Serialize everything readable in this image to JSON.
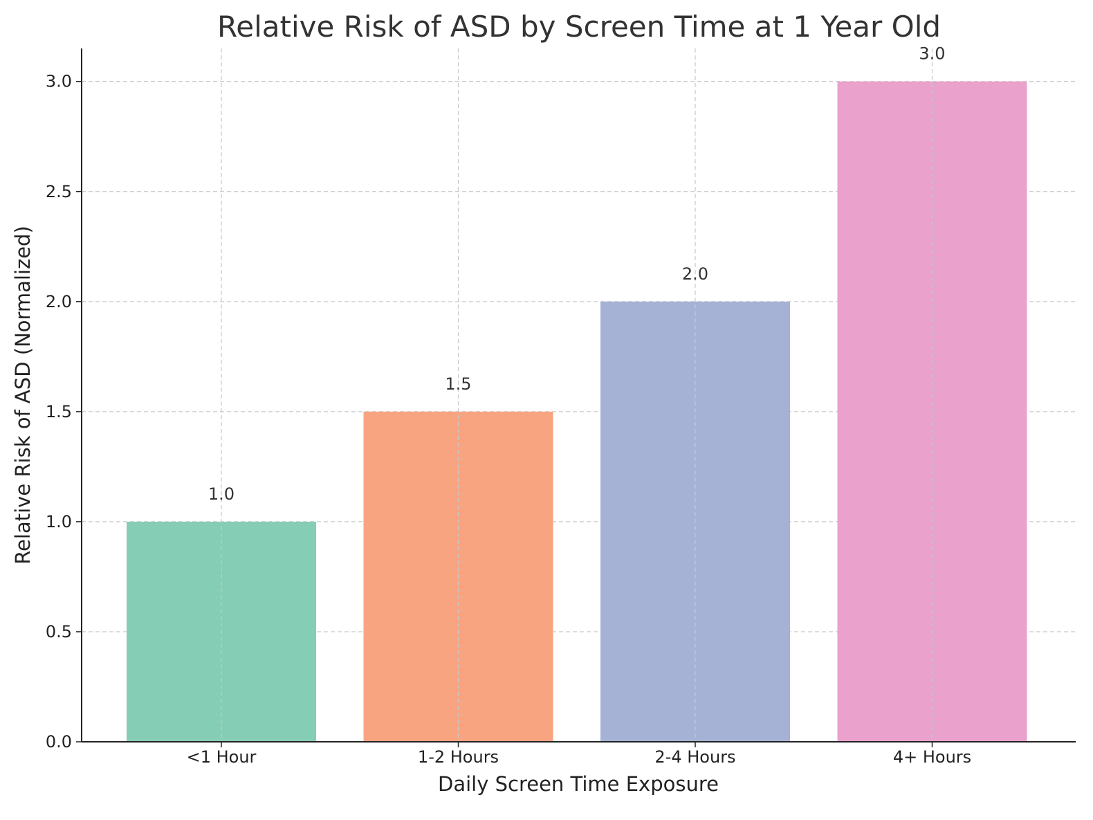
{
  "chart_data": {
    "type": "bar",
    "title": "Relative Risk of ASD by Screen Time at 1 Year Old",
    "xlabel": "Daily Screen Time Exposure",
    "ylabel": "Relative Risk of ASD (Normalized)",
    "categories": [
      "<1 Hour",
      "1-2 Hours",
      "2-4 Hours",
      "4+ Hours"
    ],
    "values": [
      1.0,
      1.5,
      2.0,
      3.0
    ],
    "data_labels": [
      "1.0",
      "1.5",
      "2.0",
      "3.0"
    ],
    "colors": [
      "#86cdb5",
      "#f9a481",
      "#a5b2d5",
      "#eaa1cc"
    ],
    "ylim": [
      0,
      3.15
    ],
    "yticks": [
      0.0,
      0.5,
      1.0,
      1.5,
      2.0,
      2.5,
      3.0
    ],
    "ytick_labels": [
      "0.0",
      "0.5",
      "1.0",
      "1.5",
      "2.0",
      "2.5",
      "3.0"
    ],
    "grid": true,
    "legend": null
  }
}
